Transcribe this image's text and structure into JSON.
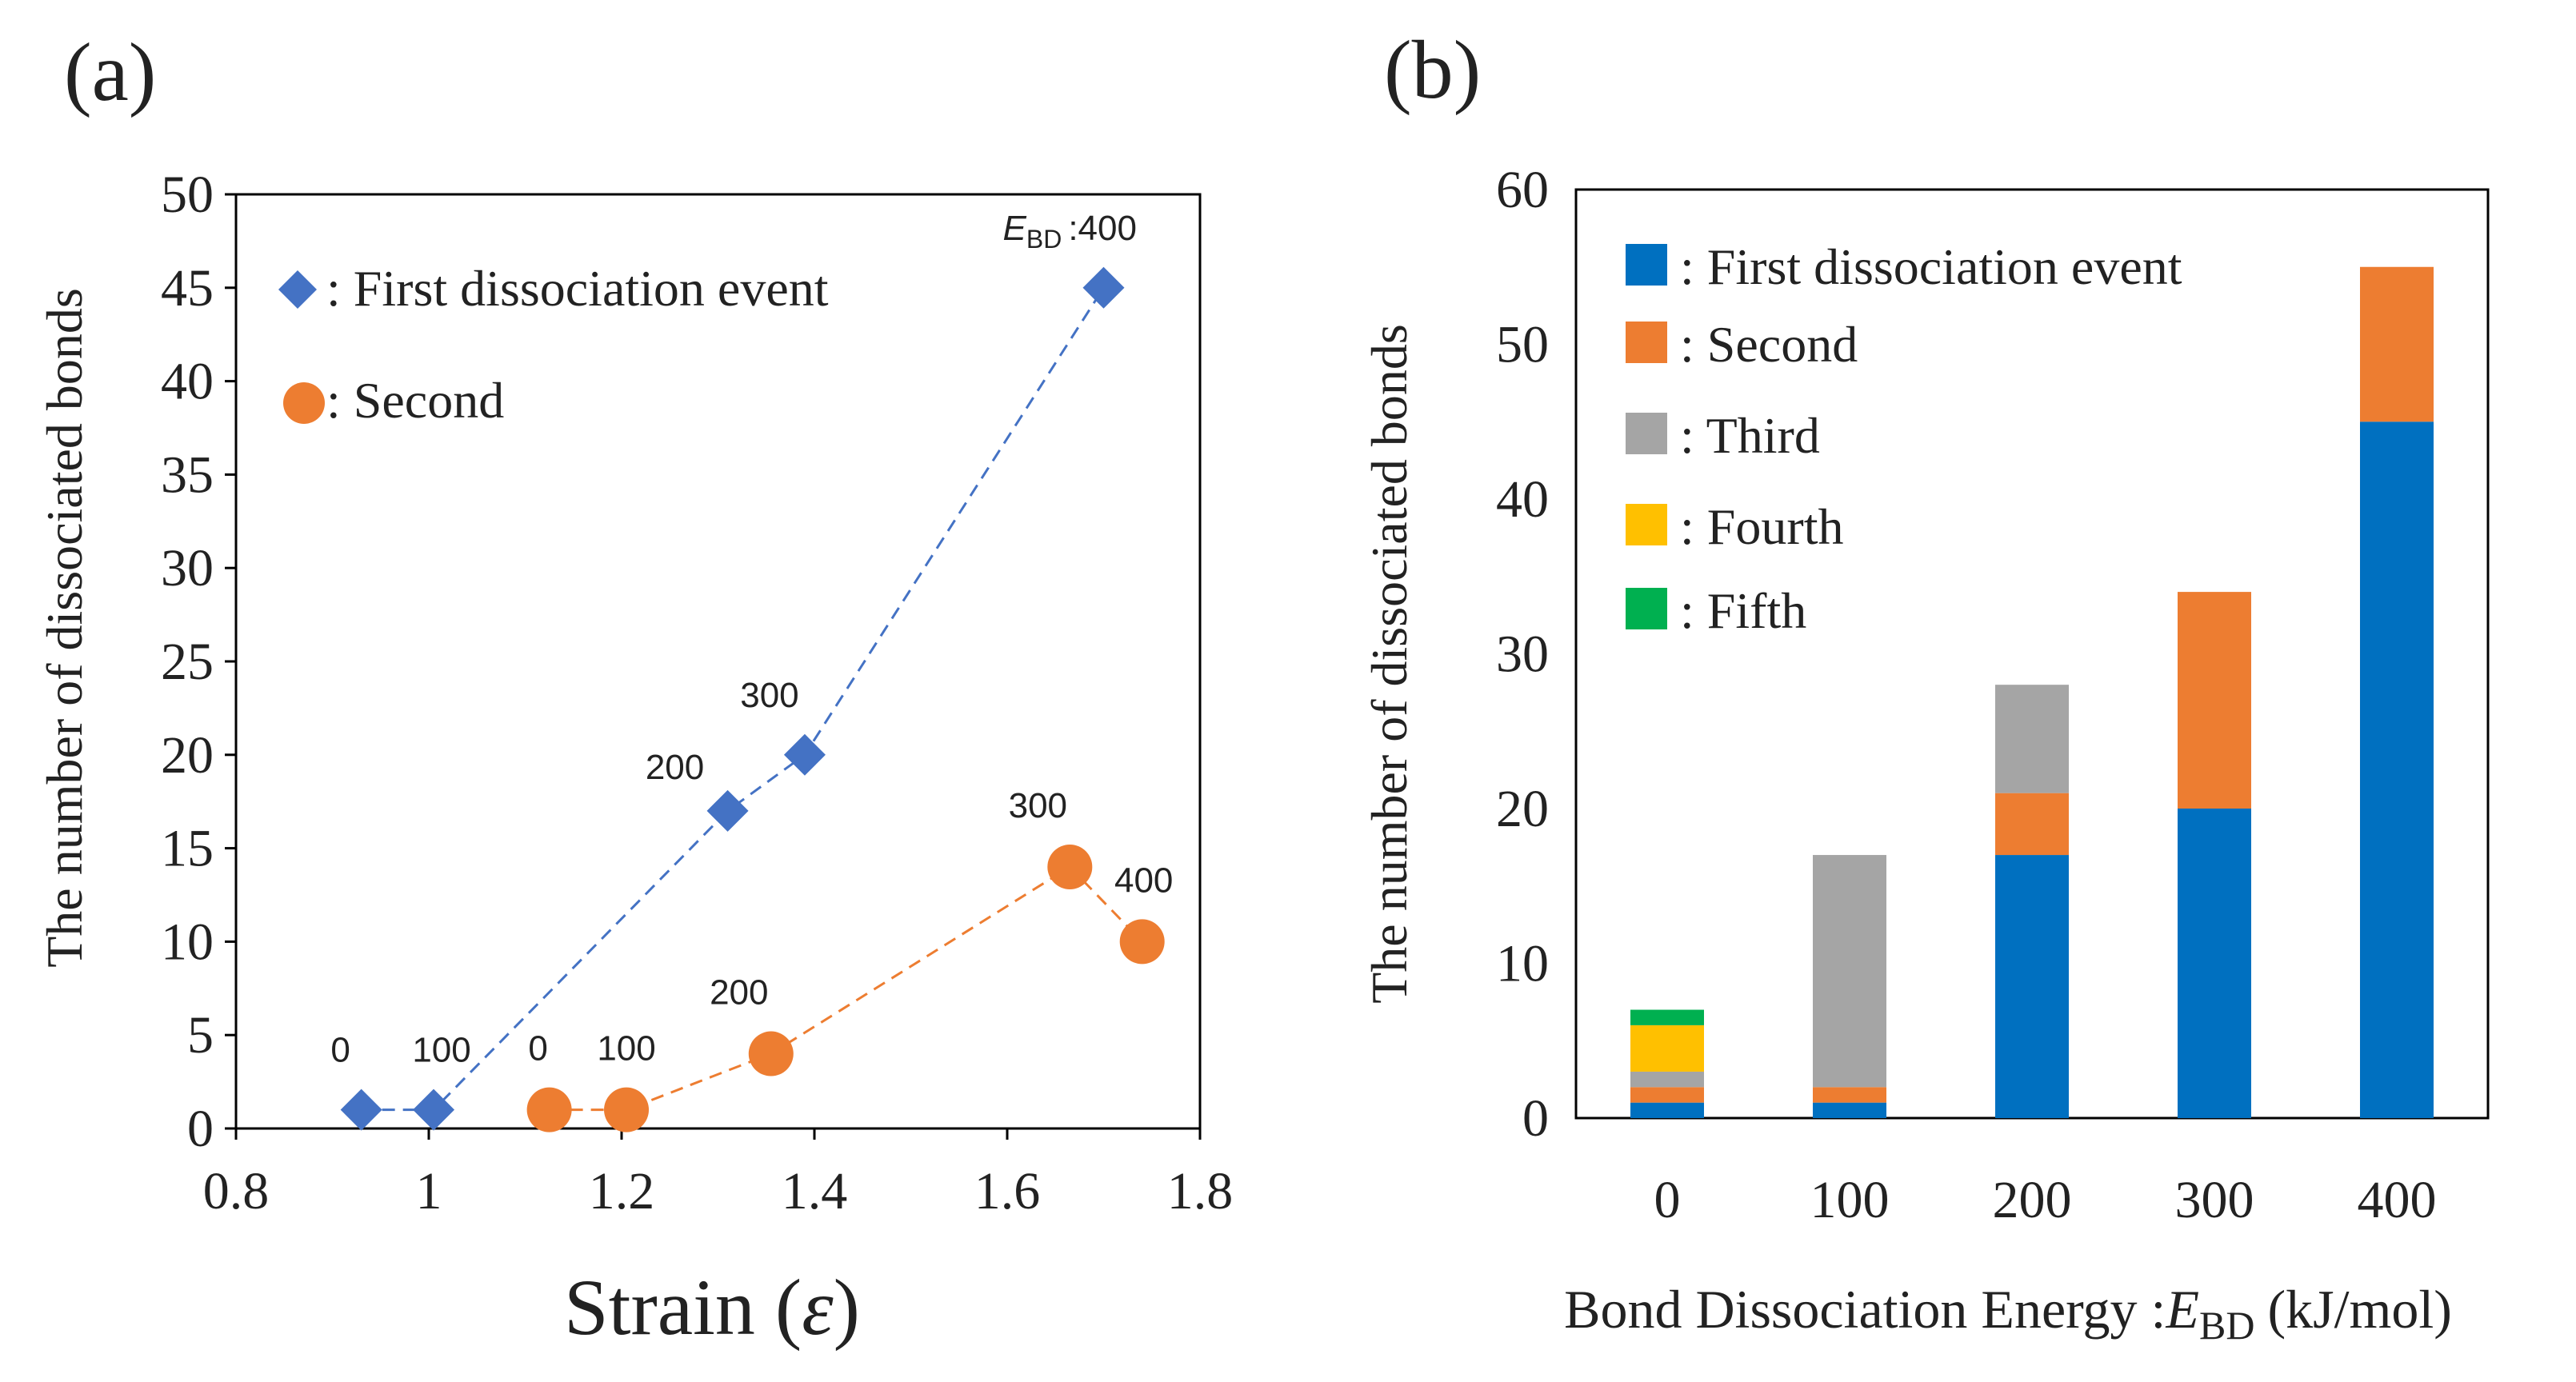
{
  "chart_data": [
    {
      "panel_label": "(a)",
      "type": "scatter",
      "xlabel": "Strain (ε)",
      "xlabel_main": "Strain",
      "xlabel_symbol": "ε",
      "ylabel": "The number of dissociated bonds",
      "xlim": [
        0.8,
        1.8
      ],
      "ylim": [
        0,
        50
      ],
      "xticks": [
        "0.8",
        "1",
        "1.2",
        "1.4",
        "1.6",
        "1.8"
      ],
      "yticks": [
        "0",
        "5",
        "10",
        "15",
        "20",
        "25",
        "30",
        "35",
        "40",
        "45",
        "50"
      ],
      "legend_position": "top-left",
      "annotation_prefix": "E",
      "annotation_prefix_sub": "BD",
      "annotation_prefix_colon": ":",
      "series": [
        {
          "name": ": First dissociation event",
          "marker": "diamond",
          "color": "#4472C4",
          "points": [
            {
              "x": 0.93,
              "y": 1,
              "label": "0"
            },
            {
              "x": 1.005,
              "y": 1,
              "label": "100"
            },
            {
              "x": 1.31,
              "y": 17,
              "label": "200"
            },
            {
              "x": 1.39,
              "y": 20,
              "label": "300"
            },
            {
              "x": 1.7,
              "y": 45,
              "label": "400"
            }
          ]
        },
        {
          "name": ": Second",
          "marker": "circle",
          "color": "#ED7D31",
          "points": [
            {
              "x": 1.125,
              "y": 1,
              "label": "0"
            },
            {
              "x": 1.205,
              "y": 1,
              "label": "100"
            },
            {
              "x": 1.355,
              "y": 4,
              "label": "200"
            },
            {
              "x": 1.665,
              "y": 14,
              "label": "300"
            },
            {
              "x": 1.74,
              "y": 10,
              "label": "400"
            }
          ]
        }
      ]
    },
    {
      "panel_label": "(b)",
      "type": "bar",
      "stacked": true,
      "xlabel": "Bond Dissociation Energy :E_BD (kJ/mol)",
      "xlabel_main": "Bond Dissociation Energy :",
      "xlabel_symbol": "E",
      "xlabel_sub": "BD",
      "xlabel_unit": "(kJ/mol)",
      "ylabel": "The number of dissociated bonds",
      "ylim": [
        0,
        60
      ],
      "yticks": [
        "0",
        "10",
        "20",
        "30",
        "40",
        "50",
        "60"
      ],
      "categories": [
        "0",
        "100",
        "200",
        "300",
        "400"
      ],
      "legend_position": "top-left",
      "series": [
        {
          "name": ": First dissociation event",
          "color": "#0070C0",
          "values": [
            1,
            1,
            17,
            20,
            45
          ]
        },
        {
          "name": ": Second",
          "color": "#ED7D31",
          "values": [
            1,
            1,
            4,
            14,
            10
          ]
        },
        {
          "name": ": Third",
          "color": "#A5A5A5",
          "values": [
            1,
            15,
            7,
            0,
            0
          ]
        },
        {
          "name": ": Fourth",
          "color": "#FFC000",
          "values": [
            3,
            0,
            0,
            0,
            0
          ]
        },
        {
          "name": ": Fifth",
          "color": "#00B050",
          "values": [
            1,
            0,
            0,
            0,
            0
          ]
        }
      ]
    }
  ]
}
